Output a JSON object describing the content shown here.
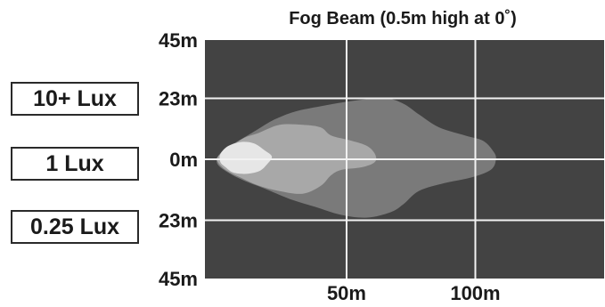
{
  "chart_data": {
    "type": "area",
    "title": "Fog Beam (0.5m high at 0˚)",
    "xlabel": "",
    "ylabel": "",
    "xlim": [
      -5,
      150
    ],
    "ylim": [
      -45,
      45
    ],
    "x_ticks": [
      {
        "value": 50,
        "label": "50m"
      },
      {
        "value": 100,
        "label": "100m"
      }
    ],
    "y_ticks": [
      {
        "value": 45,
        "label": "45m"
      },
      {
        "value": 23,
        "label": "23m"
      },
      {
        "value": 0,
        "label": "0m"
      },
      {
        "value": -23,
        "label": "23m"
      },
      {
        "value": -45,
        "label": "45m"
      }
    ],
    "grid": true,
    "legend_position": "left",
    "background_color": "#434343",
    "grid_color": "#f2f2f2",
    "series": [
      {
        "name": "0.25 Lux",
        "color": "#7a7a7a",
        "points": [
          [
            0,
            1
          ],
          [
            3,
            4
          ],
          [
            8,
            7
          ],
          [
            15,
            11
          ],
          [
            22,
            15
          ],
          [
            30,
            18
          ],
          [
            40,
            20
          ],
          [
            52,
            22
          ],
          [
            65,
            23
          ],
          [
            72,
            21
          ],
          [
            78,
            17
          ],
          [
            86,
            12
          ],
          [
            96,
            9
          ],
          [
            103,
            7
          ],
          [
            107,
            3
          ],
          [
            108,
            0
          ],
          [
            106,
            -4
          ],
          [
            98,
            -7
          ],
          [
            88,
            -9
          ],
          [
            78,
            -12
          ],
          [
            72,
            -17
          ],
          [
            67,
            -20
          ],
          [
            58,
            -22
          ],
          [
            48,
            -21
          ],
          [
            38,
            -18
          ],
          [
            28,
            -15
          ],
          [
            18,
            -11
          ],
          [
            10,
            -8
          ],
          [
            4,
            -5
          ],
          [
            0,
            -2
          ]
        ]
      },
      {
        "name": "1 Lux",
        "color": "#a8a8a8",
        "points": [
          [
            0,
            1
          ],
          [
            4,
            4
          ],
          [
            10,
            8
          ],
          [
            16,
            10
          ],
          [
            24,
            13
          ],
          [
            33,
            13
          ],
          [
            40,
            12
          ],
          [
            44,
            9
          ],
          [
            52,
            7
          ],
          [
            58,
            5
          ],
          [
            61,
            2
          ],
          [
            61,
            -1
          ],
          [
            56,
            -3
          ],
          [
            48,
            -4
          ],
          [
            44,
            -6
          ],
          [
            40,
            -10
          ],
          [
            33,
            -13
          ],
          [
            24,
            -12
          ],
          [
            16,
            -10
          ],
          [
            9,
            -7
          ],
          [
            3,
            -4
          ],
          [
            0,
            -1
          ]
        ]
      },
      {
        "name": "10+ Lux",
        "color": "#e6e6e6",
        "points": [
          [
            1,
            2
          ],
          [
            4,
            5
          ],
          [
            9,
            6.5
          ],
          [
            14,
            6
          ],
          [
            18,
            3.5
          ],
          [
            21,
            1
          ],
          [
            19,
            -2
          ],
          [
            16,
            -4.5
          ],
          [
            11,
            -5.5
          ],
          [
            6,
            -5
          ],
          [
            3,
            -3
          ],
          [
            1,
            -1
          ]
        ]
      }
    ]
  }
}
